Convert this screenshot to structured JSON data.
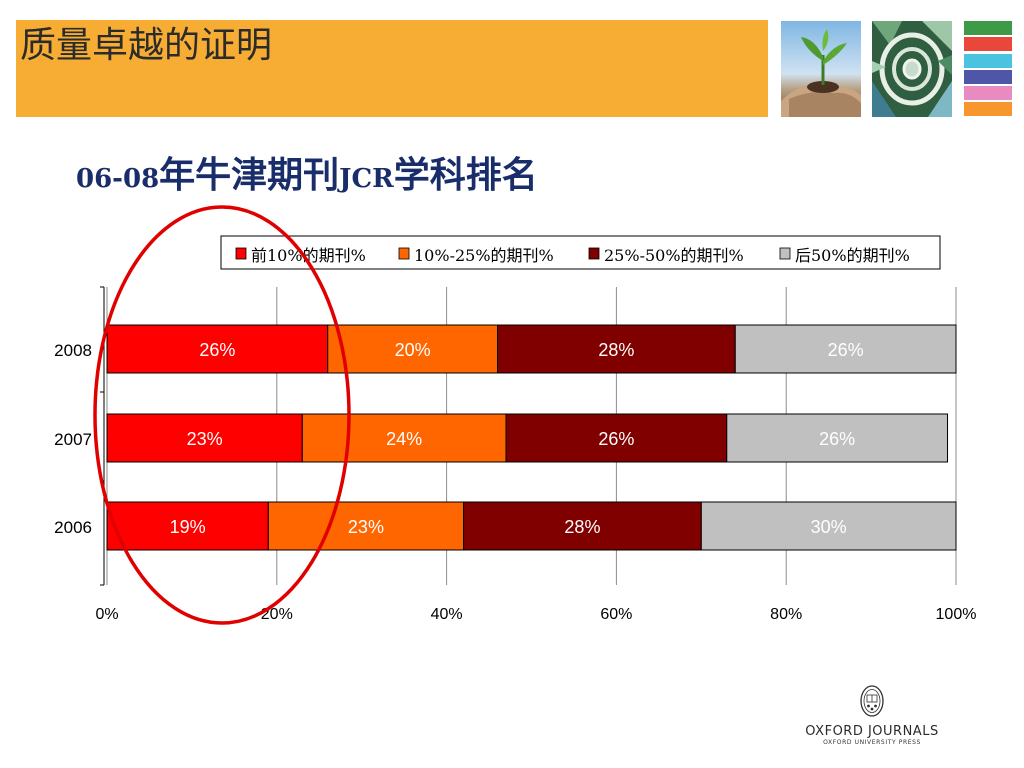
{
  "header": {
    "title": "质量卓越的证明"
  },
  "subtitle": {
    "part1": "06-08",
    "part2": "年牛津期刊",
    "part3": "JCR",
    "part4": "学科排名"
  },
  "palette": {
    "header_bg": "#f7ad34",
    "swatches": [
      "#3f9a47",
      "#e8473a",
      "#49c3df",
      "#4f56a8",
      "#e98bc1",
      "#f7962c"
    ],
    "series": [
      "#ff0000",
      "#ff6600",
      "#800000",
      "#c0c0c0"
    ],
    "highlight": "#e00000"
  },
  "icons": {
    "photo1": "plant-in-hands-photo",
    "photo2": "stained-glass-spiral-photo",
    "seal": "oxford-seal-icon"
  },
  "logo": {
    "main": "OXFORD JOURNALS",
    "sub": "OXFORD UNIVERSITY PRESS"
  },
  "chart_data": {
    "type": "bar",
    "orientation": "horizontal",
    "stacked": true,
    "percent_stacked": true,
    "categories": [
      "2008",
      "2007",
      "2006"
    ],
    "series": [
      {
        "name": "前10%的期刊%",
        "values": [
          26,
          23,
          19
        ],
        "labels": [
          "26%",
          "23%",
          "19%"
        ]
      },
      {
        "name": "10%-25%的期刊%",
        "values": [
          20,
          24,
          23
        ],
        "labels": [
          "20%",
          "24%",
          "23%"
        ]
      },
      {
        "name": "25%-50%的期刊%",
        "values": [
          28,
          26,
          28
        ],
        "labels": [
          "28%",
          "26%",
          "28%"
        ]
      },
      {
        "name": "后50%的期刊%",
        "values": [
          26,
          26,
          30
        ],
        "labels": [
          "26%",
          "26%",
          "30%"
        ]
      }
    ],
    "xlim": [
      0,
      100
    ],
    "xticks": [
      "0%",
      "20%",
      "40%",
      "60%",
      "80%",
      "100%"
    ],
    "grid": true,
    "legend_position": "top",
    "title": "",
    "xlabel": "",
    "ylabel": ""
  }
}
